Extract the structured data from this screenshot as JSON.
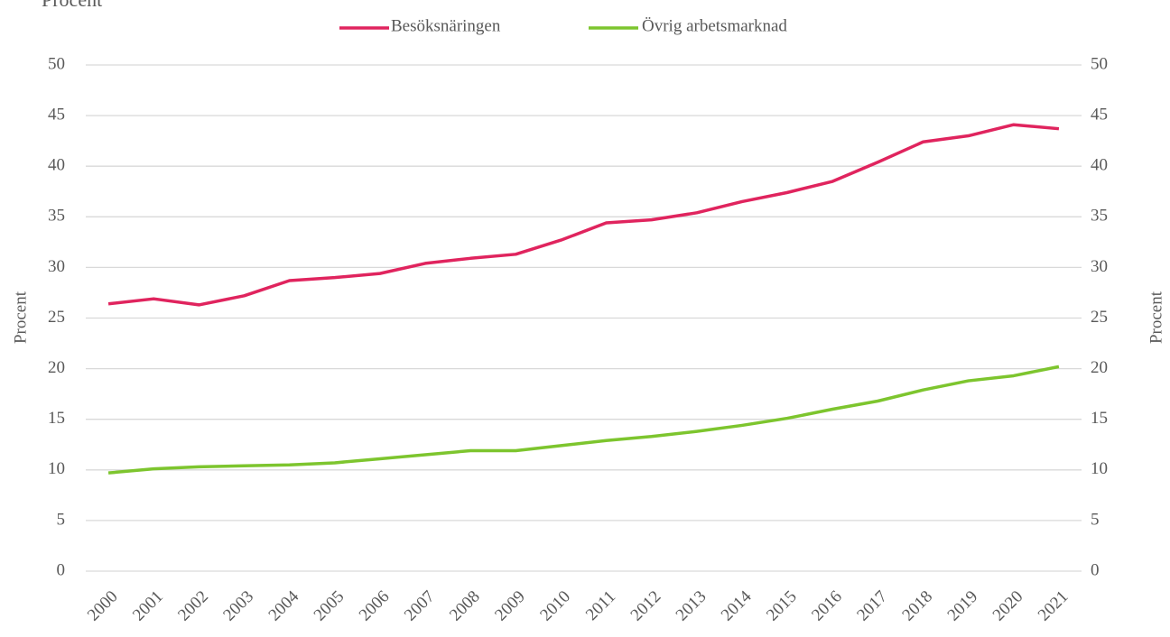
{
  "chart_data": {
    "type": "line",
    "unit_label": "Procent",
    "ylabel": "Procent",
    "y2label": "Procent",
    "categories": [
      "2000",
      "2001",
      "2002",
      "2003",
      "2004",
      "2005",
      "2006",
      "2007",
      "2008",
      "2009",
      "2010",
      "2011",
      "2012",
      "2013",
      "2014",
      "2015",
      "2016",
      "2017",
      "2018",
      "2019",
      "2020",
      "2021"
    ],
    "series": [
      {
        "name": "Besöksnäringen",
        "color": "#e0245e",
        "values": [
          26.4,
          26.9,
          26.3,
          27.2,
          28.7,
          29.0,
          29.4,
          30.4,
          30.9,
          31.3,
          32.7,
          34.4,
          34.7,
          35.4,
          36.5,
          37.4,
          38.5,
          40.4,
          42.4,
          43.0,
          44.1,
          43.7
        ]
      },
      {
        "name": "Övrig arbetsmarknad",
        "color": "#7dc52e",
        "values": [
          9.7,
          10.1,
          10.3,
          10.4,
          10.5,
          10.7,
          11.1,
          11.5,
          11.9,
          11.9,
          12.4,
          12.9,
          13.3,
          13.8,
          14.4,
          15.1,
          16.0,
          16.8,
          17.9,
          18.8,
          19.3,
          20.2
        ]
      }
    ],
    "ylim": [
      0,
      50
    ],
    "yticks": [
      0,
      5,
      10,
      15,
      20,
      25,
      30,
      35,
      40,
      45,
      50
    ],
    "y2lim": [
      0,
      50
    ],
    "y2ticks": [
      0,
      5,
      10,
      15,
      20,
      25,
      30,
      35,
      40,
      45,
      50
    ],
    "grid": true,
    "legend": "top"
  }
}
